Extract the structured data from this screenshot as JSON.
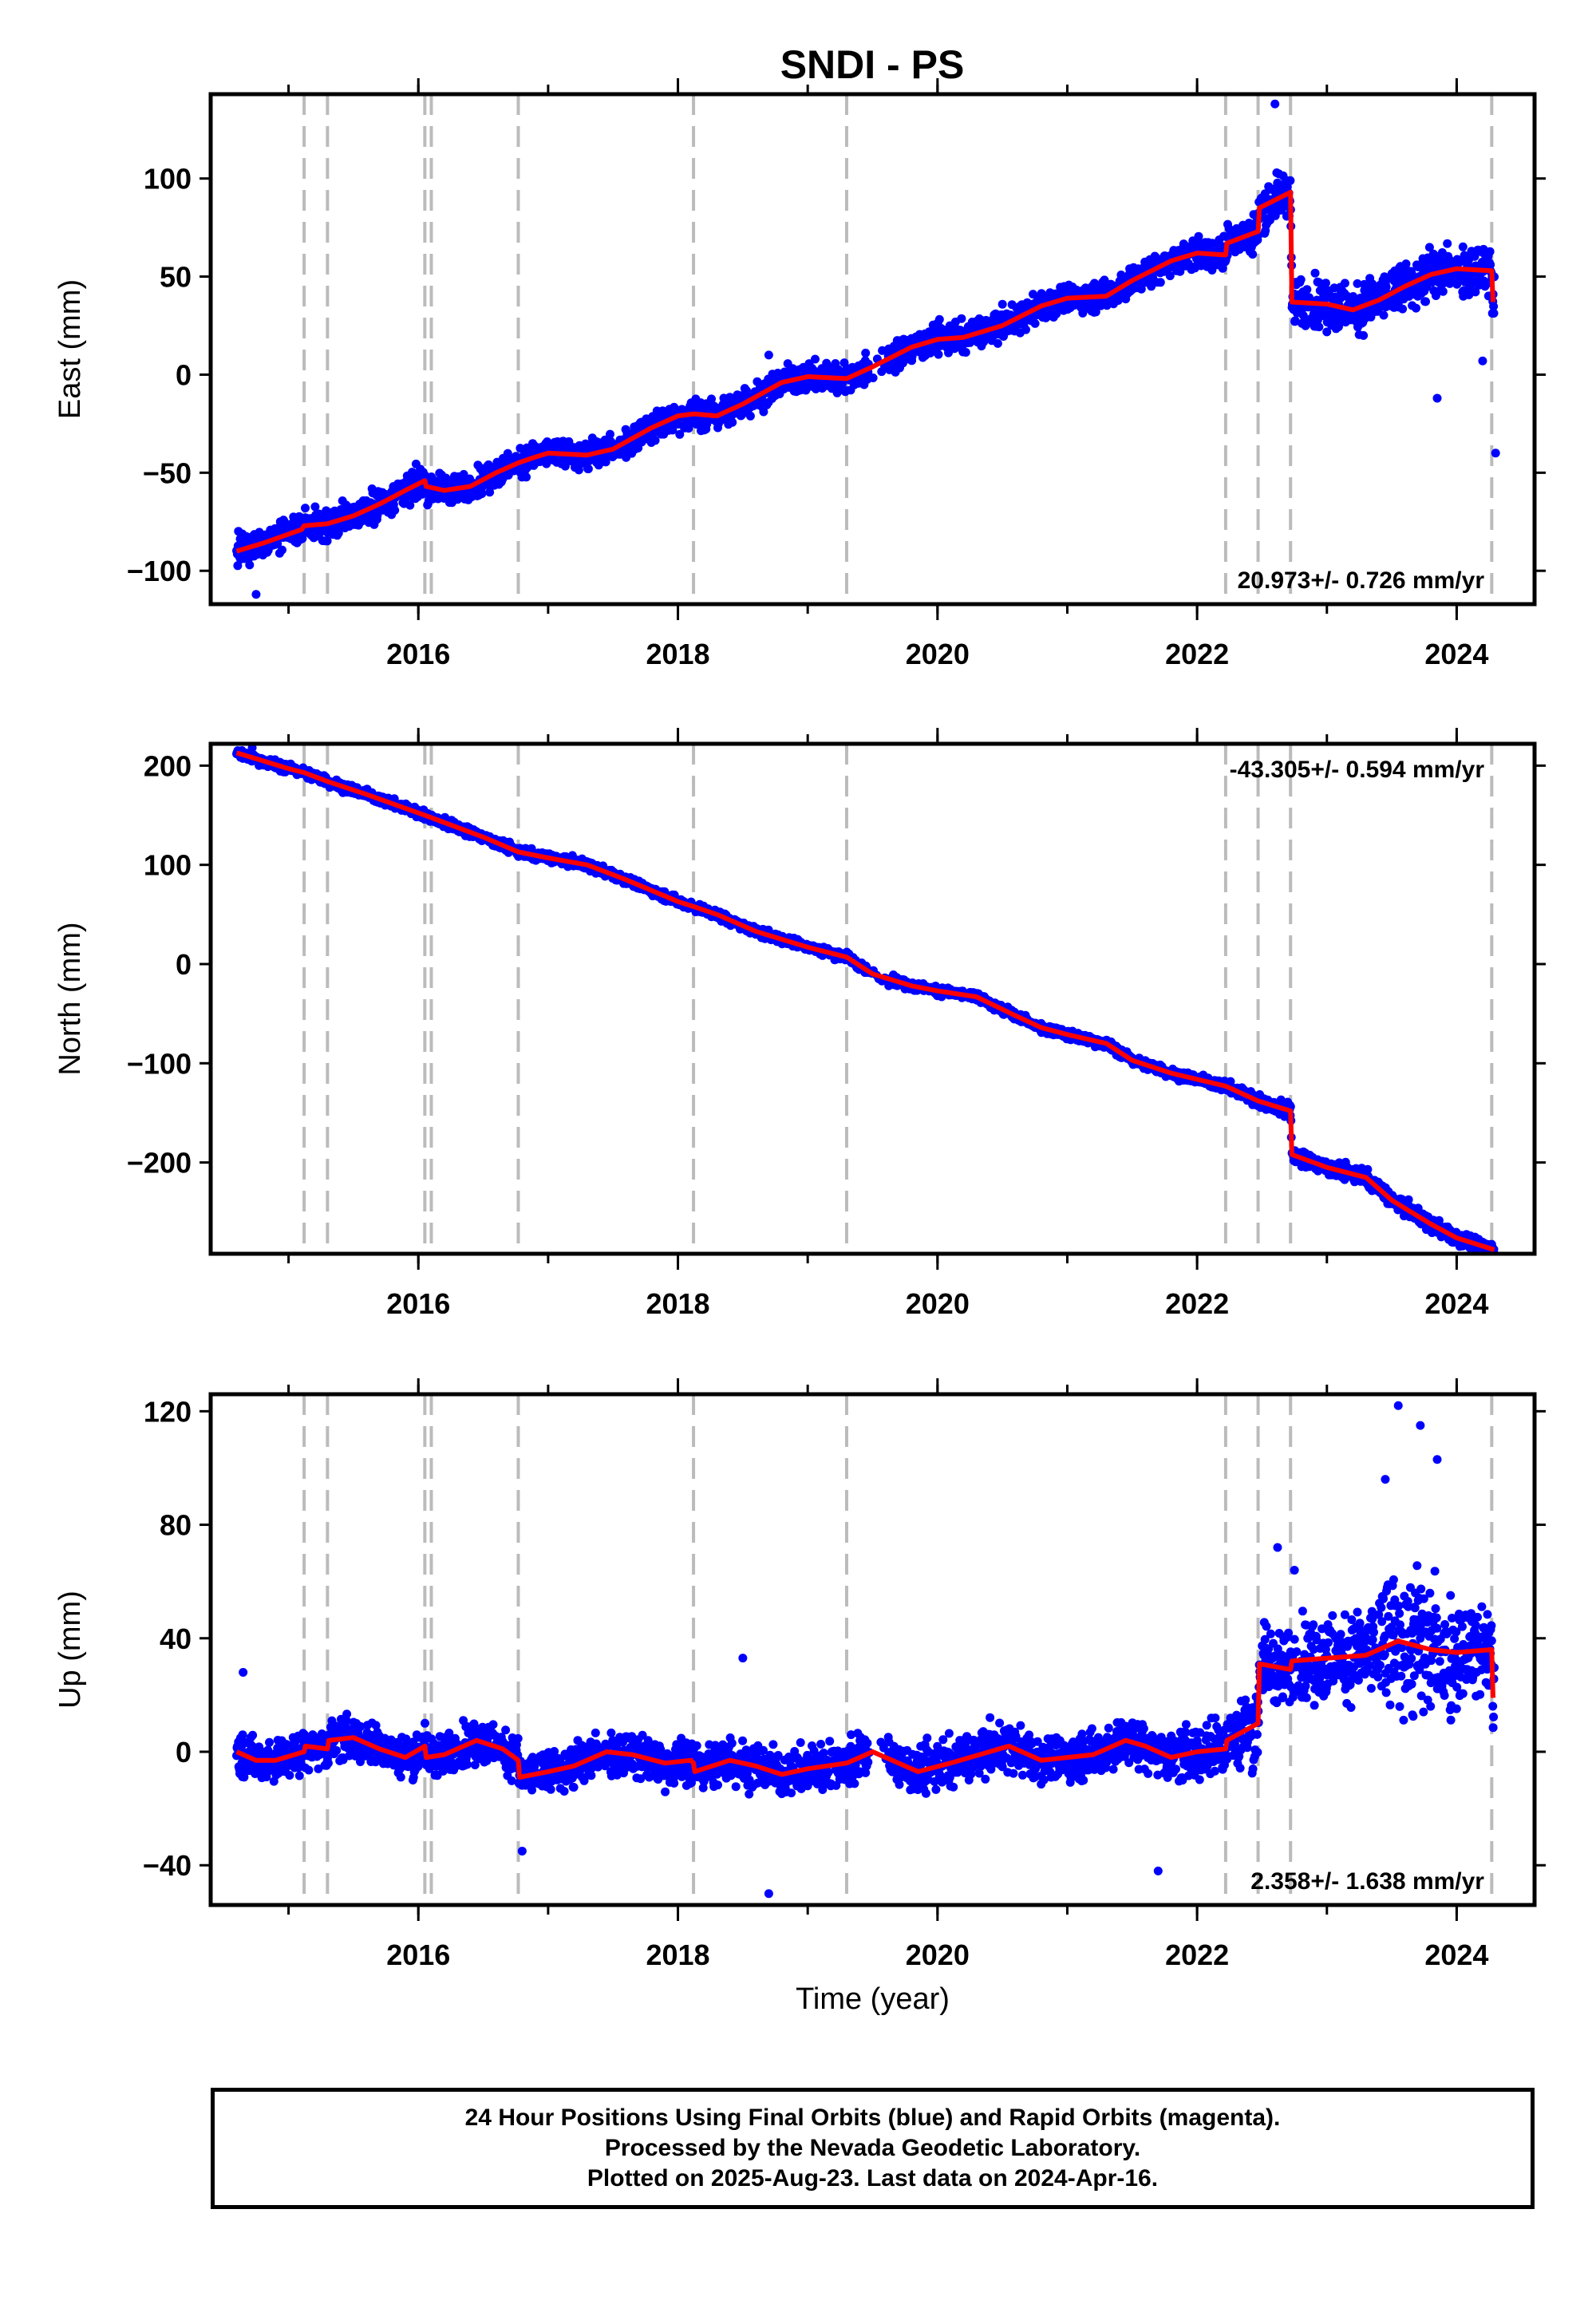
{
  "chart_data": {
    "type": "scatter",
    "title": "SNDI - PS",
    "xlabel": "Time (year)",
    "xlim": [
      2014.4,
      2024.6
    ],
    "x_ticks": [
      2016,
      2018,
      2020,
      2022,
      2024
    ],
    "x_minor_ticks": [
      2015,
      2016,
      2017,
      2018,
      2019,
      2020,
      2021,
      2022,
      2023,
      2024
    ],
    "offset_epochs": [
      2015.12,
      2015.3,
      2016.05,
      2016.1,
      2016.77,
      2018.12,
      2019.3,
      2022.22,
      2022.47,
      2022.72,
      2024.27
    ],
    "data_start": 2014.6,
    "data_end": 2024.29,
    "colors": {
      "data": "#0000ff",
      "model": "#ff0000",
      "offsets": "#bbbbbb"
    },
    "panels": [
      {
        "id": "east",
        "ylabel": "East (mm)",
        "ylim": [
          -117,
          143
        ],
        "y_ticks": [
          -100,
          -50,
          0,
          50,
          100
        ],
        "y_tick_labels": [
          "−100",
          "−50",
          "0",
          "50",
          "100"
        ],
        "rate_text": "20.973+/- 0.726 mm/yr",
        "rate_position": "bottom-right",
        "model": [
          [
            2014.6,
            -90
          ],
          [
            2014.8,
            -86
          ],
          [
            2015.1,
            -79
          ],
          [
            2015.12,
            -77
          ],
          [
            2015.3,
            -76
          ],
          [
            2015.5,
            -72
          ],
          [
            2015.7,
            -66
          ],
          [
            2015.9,
            -59
          ],
          [
            2016.05,
            -54
          ],
          [
            2016.06,
            -57
          ],
          [
            2016.2,
            -59
          ],
          [
            2016.4,
            -57
          ],
          [
            2016.6,
            -50
          ],
          [
            2016.77,
            -45
          ],
          [
            2016.9,
            -42
          ],
          [
            2017.0,
            -40
          ],
          [
            2017.3,
            -41
          ],
          [
            2017.5,
            -38
          ],
          [
            2017.8,
            -27
          ],
          [
            2018.0,
            -21
          ],
          [
            2018.12,
            -20
          ],
          [
            2018.3,
            -21
          ],
          [
            2018.5,
            -15
          ],
          [
            2018.8,
            -4
          ],
          [
            2019.0,
            -1
          ],
          [
            2019.3,
            -2
          ],
          [
            2019.5,
            4
          ],
          [
            2019.8,
            14
          ],
          [
            2020.0,
            18
          ],
          [
            2020.2,
            19
          ],
          [
            2020.5,
            25
          ],
          [
            2020.8,
            35
          ],
          [
            2021.0,
            39
          ],
          [
            2021.3,
            40
          ],
          [
            2021.5,
            48
          ],
          [
            2021.8,
            58
          ],
          [
            2022.0,
            62
          ],
          [
            2022.22,
            61
          ],
          [
            2022.23,
            67
          ],
          [
            2022.47,
            73
          ],
          [
            2022.48,
            85
          ],
          [
            2022.72,
            93
          ],
          [
            2022.73,
            37
          ],
          [
            2023.0,
            36
          ],
          [
            2023.2,
            33
          ],
          [
            2023.4,
            38
          ],
          [
            2023.6,
            45
          ],
          [
            2023.8,
            51
          ],
          [
            2024.0,
            54
          ],
          [
            2024.27,
            53
          ],
          [
            2024.28,
            37
          ]
        ],
        "band": [
          [
            2014.6,
            8
          ],
          [
            2022.0,
            8
          ],
          [
            2022.73,
            14
          ],
          [
            2024.29,
            14
          ]
        ],
        "outliers": [
          [
            2014.75,
            -112
          ],
          [
            2014.7,
            -97
          ],
          [
            2018.7,
            10
          ],
          [
            2022.6,
            138
          ],
          [
            2023.85,
            -12
          ],
          [
            2024.2,
            7
          ],
          [
            2024.3,
            -40
          ]
        ]
      },
      {
        "id": "north",
        "ylabel": "North (mm)",
        "ylim": [
          -292,
          222
        ],
        "y_ticks": [
          -200,
          -100,
          0,
          100,
          200
        ],
        "y_tick_labels": [
          "−200",
          "−100",
          "0",
          "100",
          "200"
        ],
        "rate_text": "-43.305+/- 0.594 mm/yr",
        "rate_position": "top-right",
        "model": [
          [
            2014.6,
            213
          ],
          [
            2015.0,
            197
          ],
          [
            2015.12,
            193
          ],
          [
            2015.3,
            184
          ],
          [
            2015.6,
            171
          ],
          [
            2016.05,
            150
          ],
          [
            2016.5,
            128
          ],
          [
            2016.77,
            113
          ],
          [
            2017.0,
            107
          ],
          [
            2017.3,
            100
          ],
          [
            2017.6,
            85
          ],
          [
            2018.0,
            63
          ],
          [
            2018.12,
            58
          ],
          [
            2018.3,
            50
          ],
          [
            2018.6,
            33
          ],
          [
            2019.0,
            17
          ],
          [
            2019.3,
            7
          ],
          [
            2019.5,
            -10
          ],
          [
            2019.8,
            -22
          ],
          [
            2020.0,
            -27
          ],
          [
            2020.3,
            -33
          ],
          [
            2020.6,
            -52
          ],
          [
            2020.8,
            -64
          ],
          [
            2021.0,
            -71
          ],
          [
            2021.3,
            -80
          ],
          [
            2021.5,
            -97
          ],
          [
            2021.8,
            -110
          ],
          [
            2022.22,
            -123
          ],
          [
            2022.47,
            -138
          ],
          [
            2022.72,
            -148
          ],
          [
            2022.73,
            -192
          ],
          [
            2023.0,
            -205
          ],
          [
            2023.3,
            -215
          ],
          [
            2023.5,
            -238
          ],
          [
            2023.8,
            -262
          ],
          [
            2024.0,
            -276
          ],
          [
            2024.29,
            -288
          ]
        ],
        "band": [
          [
            2014.6,
            5
          ],
          [
            2022.0,
            5
          ],
          [
            2022.73,
            8
          ],
          [
            2024.29,
            8
          ]
        ],
        "outliers": [
          [
            2014.72,
            218
          ],
          [
            2024.2,
            -292
          ]
        ]
      },
      {
        "id": "up",
        "ylabel": "Up (mm)",
        "ylim": [
          -54,
          126
        ],
        "y_ticks": [
          -40,
          0,
          40,
          80,
          120
        ],
        "y_tick_labels": [
          "−40",
          "0",
          "40",
          "80",
          "120"
        ],
        "rate_text": "2.358+/- 1.638 mm/yr",
        "rate_position": "bottom-right",
        "model": [
          [
            2014.6,
            0
          ],
          [
            2014.75,
            -3
          ],
          [
            2014.9,
            -3
          ],
          [
            2015.12,
            0
          ],
          [
            2015.13,
            2
          ],
          [
            2015.3,
            1
          ],
          [
            2015.31,
            4
          ],
          [
            2015.5,
            5
          ],
          [
            2015.7,
            1
          ],
          [
            2015.9,
            -2
          ],
          [
            2016.05,
            2
          ],
          [
            2016.06,
            -2
          ],
          [
            2016.2,
            -1
          ],
          [
            2016.45,
            4
          ],
          [
            2016.65,
            1
          ],
          [
            2016.77,
            -3
          ],
          [
            2016.78,
            -9
          ],
          [
            2017.0,
            -7
          ],
          [
            2017.2,
            -5
          ],
          [
            2017.45,
            0
          ],
          [
            2017.65,
            -1
          ],
          [
            2017.9,
            -4
          ],
          [
            2018.1,
            -3
          ],
          [
            2018.12,
            -4
          ],
          [
            2018.13,
            -7
          ],
          [
            2018.4,
            -3
          ],
          [
            2018.6,
            -5
          ],
          [
            2018.8,
            -8
          ],
          [
            2019.0,
            -6
          ],
          [
            2019.3,
            -4
          ],
          [
            2019.5,
            0
          ],
          [
            2019.7,
            -4
          ],
          [
            2019.85,
            -7
          ],
          [
            2020.1,
            -4
          ],
          [
            2020.4,
            0
          ],
          [
            2020.55,
            2
          ],
          [
            2020.8,
            -3
          ],
          [
            2021.0,
            -2
          ],
          [
            2021.2,
            -1
          ],
          [
            2021.45,
            4
          ],
          [
            2021.6,
            2
          ],
          [
            2021.8,
            -2
          ],
          [
            2022.0,
            0
          ],
          [
            2022.22,
            1
          ],
          [
            2022.23,
            4
          ],
          [
            2022.47,
            10
          ],
          [
            2022.48,
            31
          ],
          [
            2022.72,
            29
          ],
          [
            2022.73,
            32
          ],
          [
            2023.0,
            33
          ],
          [
            2023.3,
            34
          ],
          [
            2023.55,
            39
          ],
          [
            2023.8,
            36
          ],
          [
            2024.0,
            35
          ],
          [
            2024.27,
            36
          ],
          [
            2024.28,
            19
          ]
        ],
        "band": [
          [
            2014.6,
            8
          ],
          [
            2021.8,
            9
          ],
          [
            2022.4,
            14
          ],
          [
            2022.9,
            16
          ],
          [
            2023.3,
            17
          ],
          [
            2023.5,
            28
          ],
          [
            2023.9,
            28
          ],
          [
            2024.05,
            18
          ],
          [
            2024.29,
            16
          ]
        ],
        "outliers": [
          [
            2014.65,
            28
          ],
          [
            2016.8,
            -35
          ],
          [
            2018.7,
            -50
          ],
          [
            2018.5,
            33
          ],
          [
            2021.7,
            -42
          ],
          [
            2023.55,
            122
          ],
          [
            2023.72,
            115
          ],
          [
            2023.85,
            103
          ],
          [
            2023.45,
            96
          ],
          [
            2022.62,
            72
          ],
          [
            2022.75,
            64
          ]
        ]
      }
    ]
  },
  "footer": {
    "line1": "24 Hour Positions Using Final Orbits (blue) and Rapid Orbits (magenta).",
    "line2": "Processed by the Nevada Geodetic Laboratory.",
    "line3": "Plotted on 2025-Aug-23. Last data on 2024-Apr-16."
  }
}
